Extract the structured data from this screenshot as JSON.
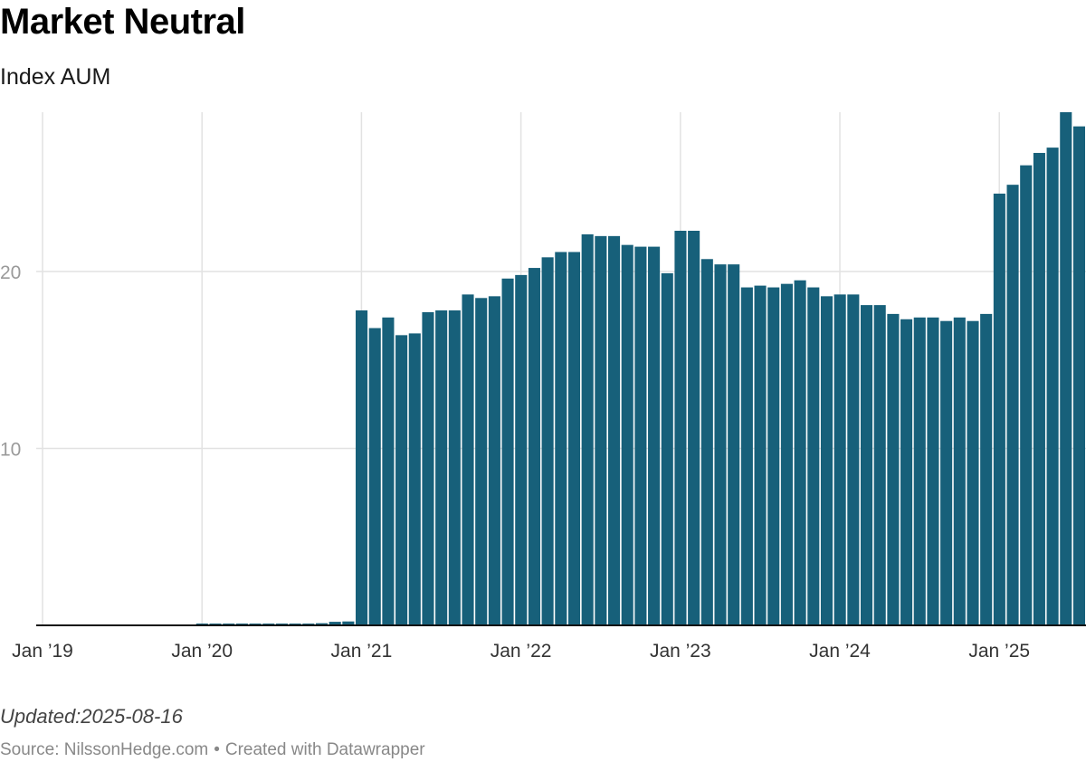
{
  "title": "Market Neutral",
  "subtitle": "Index AUM",
  "updated": "Updated:2025-08-16",
  "source": {
    "label": "Source: NilssonHedge.com",
    "credit": "Created with Datawrapper"
  },
  "colors": {
    "bar": "#17607a",
    "grid": "#e2e2e2",
    "axis": "#111111",
    "ytick": "#9a9a9a"
  },
  "chart_data": {
    "type": "bar",
    "ylim": [
      0,
      29
    ],
    "y_ticks": [
      {
        "value": 10,
        "label": "10"
      },
      {
        "value": 20,
        "label": "20"
      }
    ],
    "x_ticks": [
      {
        "date": "2019-01",
        "label": "Jan ’19"
      },
      {
        "date": "2020-01",
        "label": "Jan ’20"
      },
      {
        "date": "2021-01",
        "label": "Jan ’21"
      },
      {
        "date": "2022-01",
        "label": "Jan ’22"
      },
      {
        "date": "2023-01",
        "label": "Jan ’23"
      },
      {
        "date": "2024-01",
        "label": "Jan ’24"
      },
      {
        "date": "2025-01",
        "label": "Jan ’25"
      }
    ],
    "grid": true,
    "legend": "none",
    "x": [
      "2019-01",
      "2019-02",
      "2019-03",
      "2019-04",
      "2019-05",
      "2019-06",
      "2019-07",
      "2019-08",
      "2019-09",
      "2019-10",
      "2019-11",
      "2019-12",
      "2020-01",
      "2020-02",
      "2020-03",
      "2020-04",
      "2020-05",
      "2020-06",
      "2020-07",
      "2020-08",
      "2020-09",
      "2020-10",
      "2020-11",
      "2020-12",
      "2021-01",
      "2021-02",
      "2021-03",
      "2021-04",
      "2021-05",
      "2021-06",
      "2021-07",
      "2021-08",
      "2021-09",
      "2021-10",
      "2021-11",
      "2021-12",
      "2022-01",
      "2022-02",
      "2022-03",
      "2022-04",
      "2022-05",
      "2022-06",
      "2022-07",
      "2022-08",
      "2022-09",
      "2022-10",
      "2022-11",
      "2022-12",
      "2023-01",
      "2023-02",
      "2023-03",
      "2023-04",
      "2023-05",
      "2023-06",
      "2023-07",
      "2023-08",
      "2023-09",
      "2023-10",
      "2023-11",
      "2023-12",
      "2024-01",
      "2024-02",
      "2024-03",
      "2024-04",
      "2024-05",
      "2024-06",
      "2024-07",
      "2024-08",
      "2024-09",
      "2024-10",
      "2024-11",
      "2024-12",
      "2025-01",
      "2025-02",
      "2025-03",
      "2025-04",
      "2025-05",
      "2025-06",
      "2025-07"
    ],
    "values": [
      0.02,
      0.02,
      0.02,
      0.02,
      0.02,
      0.02,
      0.02,
      0.02,
      0.02,
      0.02,
      0.02,
      0.02,
      0.1,
      0.1,
      0.1,
      0.1,
      0.1,
      0.1,
      0.1,
      0.1,
      0.1,
      0.12,
      0.2,
      0.22,
      17.8,
      16.8,
      17.4,
      16.4,
      16.5,
      17.7,
      17.8,
      17.8,
      18.7,
      18.5,
      18.6,
      19.6,
      19.8,
      20.2,
      20.8,
      21.1,
      21.1,
      22.1,
      22.0,
      22.0,
      21.5,
      21.4,
      21.4,
      19.9,
      22.3,
      22.3,
      20.7,
      20.4,
      20.4,
      19.1,
      19.2,
      19.1,
      19.3,
      19.5,
      19.1,
      18.6,
      18.7,
      18.7,
      18.1,
      18.1,
      17.6,
      17.3,
      17.4,
      17.4,
      17.2,
      17.4,
      17.2,
      17.6,
      24.4,
      24.9,
      26.0,
      26.7,
      27.0,
      29.0,
      28.2
    ]
  }
}
